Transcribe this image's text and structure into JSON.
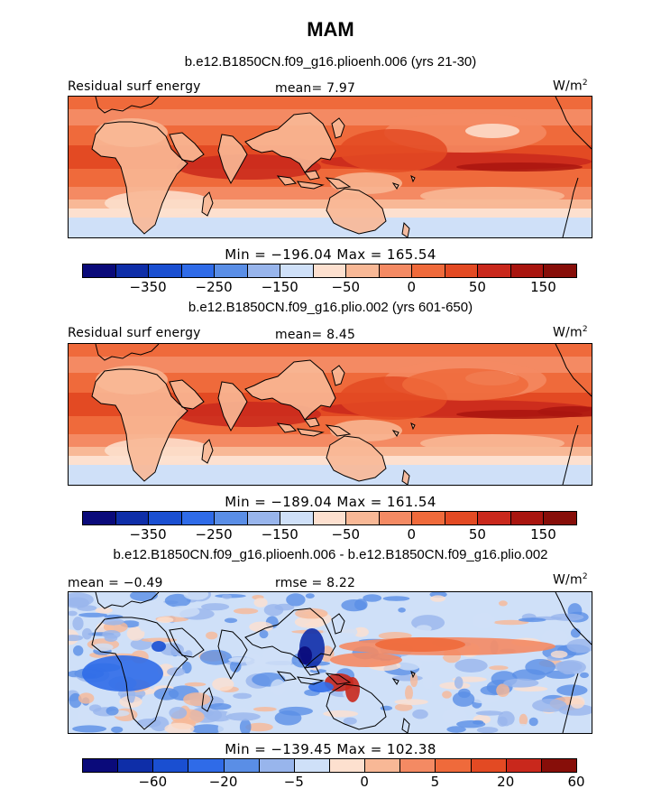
{
  "figure": {
    "title": "MAM"
  },
  "colors": {
    "full_scale": [
      "#0a0a7a",
      "#0e2ea8",
      "#1a4fd1",
      "#2f6be8",
      "#5a8ee6",
      "#98b5ec",
      "#cfe0f8",
      "#fde0cf",
      "#f8b896",
      "#f48a63",
      "#ef6a3b",
      "#e34a23",
      "#c9281c",
      "#a9150f",
      "#870e09"
    ],
    "diff_scale": [
      "#0a0a7a",
      "#0e2ea8",
      "#1a4fd1",
      "#2f6be8",
      "#5a8ee6",
      "#98b5ec",
      "#cfe0f8",
      "#fde0cf",
      "#f8b896",
      "#f48a63",
      "#ef6a3b",
      "#e34a23",
      "#c9281c",
      "#870e09"
    ],
    "land_outline": "#000000"
  },
  "chart_data": [
    {
      "type": "heatmap",
      "subtitle": "b.e12.B1850CN.f09_g16.plioenh.006 (yrs 21-30)",
      "left_label": "Residual surf energy",
      "center_label": "mean=   7.97",
      "units": "W/m",
      "units_sup": "2",
      "mean": 7.97,
      "min": -196.04,
      "max": 165.54,
      "minmax_text": "Min = −196.04  Max = 165.54",
      "colorbar_ticks": [
        "−350",
        "−250",
        "−150",
        "−50",
        "0",
        "50",
        "150"
      ],
      "pattern": "full"
    },
    {
      "type": "heatmap",
      "subtitle": "b.e12.B1850CN.f09_g16.plio.002 (yrs 601-650)",
      "left_label": "Residual surf energy",
      "center_label": "mean=   8.45",
      "units": "W/m",
      "units_sup": "2",
      "mean": 8.45,
      "min": -189.04,
      "max": 161.54,
      "minmax_text": "Min = −189.04  Max = 161.54",
      "colorbar_ticks": [
        "−350",
        "−250",
        "−150",
        "−50",
        "0",
        "50",
        "150"
      ],
      "pattern": "full"
    },
    {
      "type": "heatmap",
      "subtitle": "b.e12.B1850CN.f09_g16.plioenh.006 - b.e12.B1850CN.f09_g16.plio.002",
      "left_label": "mean =  −0.49",
      "center_label": "rmse =   8.22",
      "units": "W/m",
      "units_sup": "2",
      "mean": -0.49,
      "rmse": 8.22,
      "min": -139.45,
      "max": 102.38,
      "minmax_text": "Min = −139.45  Max = 102.38",
      "colorbar_ticks": [
        "−60",
        "−20",
        "−5",
        "0",
        "5",
        "20",
        "60"
      ],
      "pattern": "diff"
    }
  ]
}
